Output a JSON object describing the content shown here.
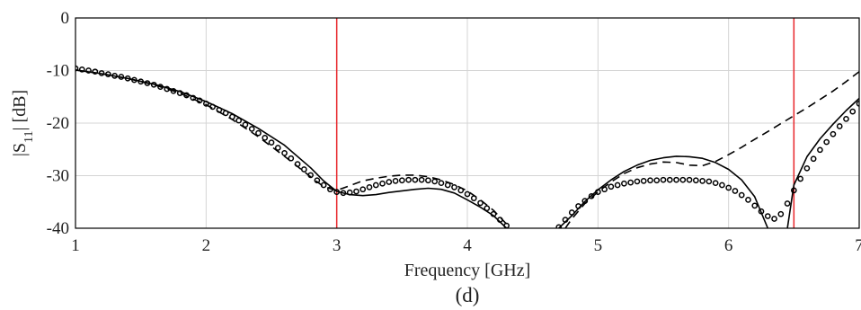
{
  "chart_data": {
    "type": "line",
    "panel_label": "(d)",
    "title": "",
    "xlabel": "Frequency [GHz]",
    "ylabel": {
      "prefix": "|S",
      "sub": "11",
      "suffix": "| [dB]"
    },
    "xlim": [
      1,
      7
    ],
    "ylim": [
      -40,
      0
    ],
    "xticks": [
      "1",
      "2",
      "3",
      "4",
      "5",
      "6",
      "7"
    ],
    "yticks": [
      "0",
      "-10",
      "-20",
      "-30",
      "-40"
    ],
    "xtick_values": [
      1,
      2,
      3,
      4,
      5,
      6,
      7
    ],
    "ytick_values": [
      0,
      -10,
      -20,
      -30,
      -40
    ],
    "grid": true,
    "legend": "none",
    "vertical_markers": [
      {
        "x": 3.0,
        "color": "#e8262b"
      },
      {
        "x": 6.5,
        "color": "#e8262b"
      }
    ],
    "series": [
      {
        "style": "solid",
        "color": "#000000",
        "segments": [
          [
            [
              1.0,
              -9.9
            ],
            [
              1.2,
              -10.6
            ],
            [
              1.4,
              -11.5
            ],
            [
              1.6,
              -12.6
            ],
            [
              1.8,
              -14.0
            ],
            [
              2.0,
              -15.9
            ],
            [
              2.2,
              -18.2
            ],
            [
              2.4,
              -21.0
            ],
            [
              2.6,
              -24.2
            ],
            [
              2.8,
              -28.5
            ],
            [
              2.9,
              -31.0
            ],
            [
              3.0,
              -33.0
            ],
            [
              3.1,
              -33.6
            ],
            [
              3.2,
              -33.8
            ],
            [
              3.3,
              -33.6
            ],
            [
              3.4,
              -33.2
            ],
            [
              3.6,
              -32.6
            ],
            [
              3.7,
              -32.4
            ],
            [
              3.8,
              -32.6
            ],
            [
              3.9,
              -33.3
            ],
            [
              4.0,
              -34.6
            ],
            [
              4.1,
              -36.0
            ],
            [
              4.2,
              -37.6
            ],
            [
              4.3,
              -40.0
            ]
          ],
          [
            [
              4.7,
              -40.0
            ],
            [
              4.8,
              -37.6
            ],
            [
              4.9,
              -34.9
            ],
            [
              5.0,
              -32.7
            ],
            [
              5.1,
              -30.8
            ],
            [
              5.2,
              -29.2
            ],
            [
              5.3,
              -28.0
            ],
            [
              5.4,
              -27.1
            ],
            [
              5.5,
              -26.6
            ],
            [
              5.6,
              -26.3
            ],
            [
              5.7,
              -26.4
            ],
            [
              5.8,
              -26.7
            ],
            [
              5.9,
              -27.5
            ],
            [
              6.0,
              -28.8
            ],
            [
              6.1,
              -30.8
            ],
            [
              6.2,
              -34.0
            ],
            [
              6.3,
              -40.0
            ]
          ],
          [
            [
              6.45,
              -40.0
            ],
            [
              6.5,
              -31.8
            ],
            [
              6.6,
              -26.4
            ],
            [
              6.7,
              -23.0
            ],
            [
              6.8,
              -20.2
            ],
            [
              6.9,
              -17.6
            ],
            [
              7.0,
              -15.3
            ]
          ]
        ]
      },
      {
        "style": "dashed",
        "color": "#000000",
        "segments": [
          [
            [
              1.0,
              -9.9
            ],
            [
              1.2,
              -10.6
            ],
            [
              1.4,
              -11.5
            ],
            [
              1.6,
              -12.7
            ],
            [
              1.8,
              -14.3
            ],
            [
              2.0,
              -16.5
            ],
            [
              2.2,
              -19.3
            ],
            [
              2.4,
              -22.6
            ],
            [
              2.6,
              -26.3
            ],
            [
              2.8,
              -30.2
            ],
            [
              2.9,
              -32.1
            ],
            [
              3.0,
              -32.8
            ],
            [
              3.1,
              -31.9
            ],
            [
              3.2,
              -31.0
            ],
            [
              3.3,
              -30.5
            ],
            [
              3.4,
              -30.1
            ],
            [
              3.5,
              -29.9
            ],
            [
              3.6,
              -29.9
            ],
            [
              3.7,
              -30.2
            ],
            [
              3.8,
              -30.8
            ],
            [
              3.9,
              -31.7
            ],
            [
              4.0,
              -32.9
            ],
            [
              4.1,
              -34.6
            ],
            [
              4.2,
              -36.6
            ],
            [
              4.3,
              -39.2
            ],
            [
              4.32,
              -40.0
            ]
          ],
          [
            [
              4.75,
              -40.0
            ],
            [
              4.8,
              -38.2
            ],
            [
              4.9,
              -35.3
            ],
            [
              5.0,
              -33.1
            ],
            [
              5.1,
              -31.2
            ],
            [
              5.2,
              -29.6
            ],
            [
              5.3,
              -28.5
            ],
            [
              5.4,
              -27.8
            ],
            [
              5.5,
              -27.4
            ],
            [
              5.6,
              -27.5
            ],
            [
              5.7,
              -28.0
            ],
            [
              5.8,
              -28.1
            ],
            [
              5.9,
              -27.3
            ],
            [
              6.0,
              -26.0
            ],
            [
              6.1,
              -24.6
            ],
            [
              6.2,
              -23.1
            ],
            [
              6.3,
              -21.6
            ],
            [
              6.4,
              -20.1
            ],
            [
              6.5,
              -18.6
            ],
            [
              6.6,
              -17.1
            ],
            [
              6.7,
              -15.5
            ],
            [
              6.8,
              -13.9
            ],
            [
              6.9,
              -12.1
            ],
            [
              7.0,
              -10.2
            ]
          ]
        ]
      },
      {
        "style": "markers",
        "color": "#000000",
        "points": [
          [
            1.0,
            -9.6
          ],
          [
            1.05,
            -9.8
          ],
          [
            1.1,
            -10.0
          ],
          [
            1.15,
            -10.2
          ],
          [
            1.2,
            -10.5
          ],
          [
            1.25,
            -10.7
          ],
          [
            1.3,
            -11.0
          ],
          [
            1.35,
            -11.2
          ],
          [
            1.4,
            -11.5
          ],
          [
            1.45,
            -11.8
          ],
          [
            1.5,
            -12.1
          ],
          [
            1.55,
            -12.4
          ],
          [
            1.6,
            -12.7
          ],
          [
            1.65,
            -13.1
          ],
          [
            1.7,
            -13.5
          ],
          [
            1.75,
            -13.9
          ],
          [
            1.8,
            -14.3
          ],
          [
            1.85,
            -14.7
          ],
          [
            1.9,
            -15.2
          ],
          [
            1.95,
            -15.7
          ],
          [
            2.0,
            -16.3
          ],
          [
            2.05,
            -16.9
          ],
          [
            2.1,
            -17.5
          ],
          [
            2.15,
            -18.1
          ],
          [
            2.2,
            -18.8
          ],
          [
            2.25,
            -19.5
          ],
          [
            2.3,
            -20.3
          ],
          [
            2.35,
            -21.1
          ],
          [
            2.4,
            -21.9
          ],
          [
            2.45,
            -22.8
          ],
          [
            2.5,
            -23.7
          ],
          [
            2.55,
            -24.7
          ],
          [
            2.6,
            -25.7
          ],
          [
            2.65,
            -26.7
          ],
          [
            2.7,
            -27.8
          ],
          [
            2.75,
            -28.8
          ],
          [
            2.8,
            -29.9
          ],
          [
            2.85,
            -30.9
          ],
          [
            2.9,
            -31.8
          ],
          [
            2.95,
            -32.6
          ],
          [
            3.0,
            -33.1
          ],
          [
            3.05,
            -33.3
          ],
          [
            3.1,
            -33.2
          ],
          [
            3.15,
            -33.0
          ],
          [
            3.2,
            -32.6
          ],
          [
            3.25,
            -32.2
          ],
          [
            3.3,
            -31.8
          ],
          [
            3.35,
            -31.5
          ],
          [
            3.4,
            -31.2
          ],
          [
            3.45,
            -31.0
          ],
          [
            3.5,
            -30.9
          ],
          [
            3.55,
            -30.8
          ],
          [
            3.6,
            -30.8
          ],
          [
            3.65,
            -30.8
          ],
          [
            3.7,
            -30.9
          ],
          [
            3.75,
            -31.1
          ],
          [
            3.8,
            -31.4
          ],
          [
            3.85,
            -31.8
          ],
          [
            3.9,
            -32.2
          ],
          [
            3.95,
            -32.8
          ],
          [
            4.0,
            -33.5
          ],
          [
            4.05,
            -34.3
          ],
          [
            4.1,
            -35.2
          ],
          [
            4.15,
            -36.2
          ],
          [
            4.2,
            -37.3
          ],
          [
            4.25,
            -38.4
          ],
          [
            4.3,
            -39.5
          ],
          [
            4.7,
            -39.8
          ],
          [
            4.75,
            -38.4
          ],
          [
            4.8,
            -37.0
          ],
          [
            4.85,
            -35.8
          ],
          [
            4.9,
            -34.8
          ],
          [
            4.95,
            -33.9
          ],
          [
            5.0,
            -33.1
          ],
          [
            5.05,
            -32.6
          ],
          [
            5.1,
            -32.1
          ],
          [
            5.15,
            -31.8
          ],
          [
            5.2,
            -31.5
          ],
          [
            5.25,
            -31.3
          ],
          [
            5.3,
            -31.1
          ],
          [
            5.35,
            -31.0
          ],
          [
            5.4,
            -30.9
          ],
          [
            5.45,
            -30.9
          ],
          [
            5.5,
            -30.8
          ],
          [
            5.55,
            -30.8
          ],
          [
            5.6,
            -30.8
          ],
          [
            5.65,
            -30.8
          ],
          [
            5.7,
            -30.8
          ],
          [
            5.75,
            -30.9
          ],
          [
            5.8,
            -31.0
          ],
          [
            5.85,
            -31.1
          ],
          [
            5.9,
            -31.4
          ],
          [
            5.95,
            -31.8
          ],
          [
            6.0,
            -32.3
          ],
          [
            6.05,
            -32.9
          ],
          [
            6.1,
            -33.7
          ],
          [
            6.15,
            -34.6
          ],
          [
            6.2,
            -35.7
          ],
          [
            6.25,
            -36.8
          ],
          [
            6.3,
            -37.7
          ],
          [
            6.35,
            -38.2
          ],
          [
            6.4,
            -37.3
          ],
          [
            6.45,
            -35.3
          ],
          [
            6.5,
            -32.8
          ],
          [
            6.55,
            -30.6
          ],
          [
            6.6,
            -28.6
          ],
          [
            6.65,
            -26.8
          ],
          [
            6.7,
            -25.1
          ],
          [
            6.75,
            -23.6
          ],
          [
            6.8,
            -22.1
          ],
          [
            6.85,
            -20.6
          ],
          [
            6.9,
            -19.2
          ],
          [
            6.95,
            -17.8
          ],
          [
            7.0,
            -16.3
          ]
        ]
      }
    ]
  }
}
